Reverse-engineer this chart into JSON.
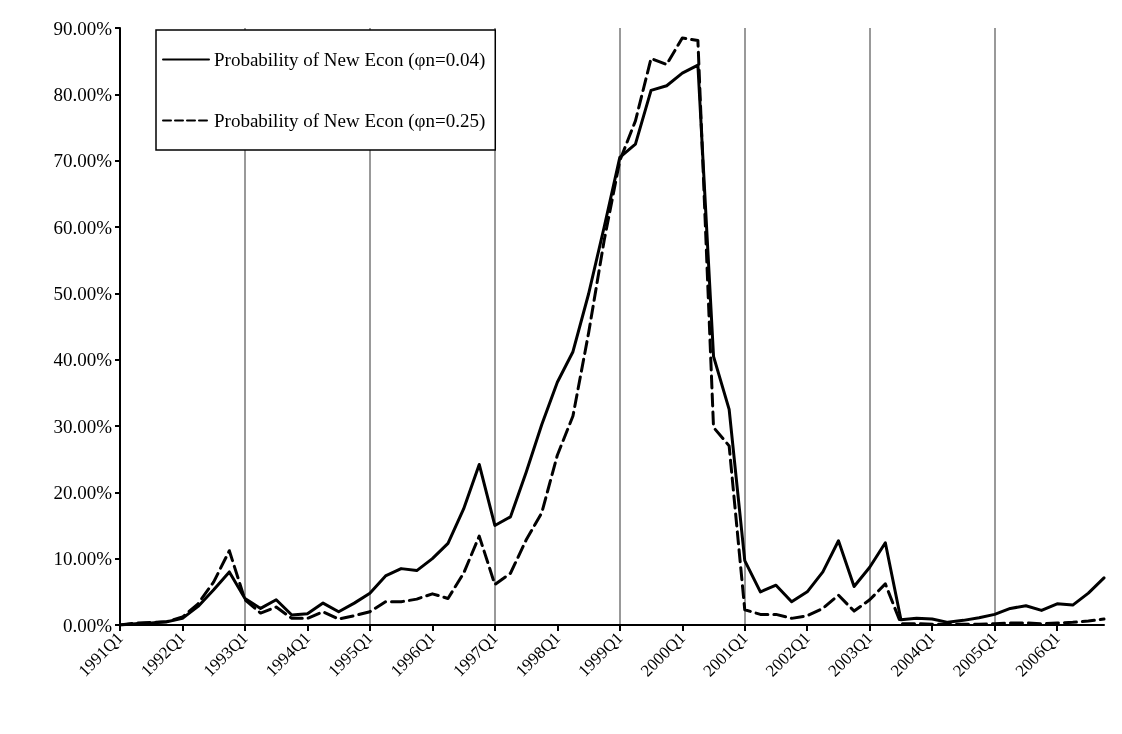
{
  "chart_data": {
    "type": "line",
    "categories": [
      "1991Q1",
      null,
      null,
      null,
      "1992Q1",
      null,
      null,
      null,
      "1993Q1",
      null,
      null,
      null,
      "1994Q1",
      null,
      null,
      null,
      "1995Q1",
      null,
      null,
      null,
      "1996Q1",
      null,
      null,
      null,
      "1997Q1",
      null,
      null,
      null,
      "1998Q1",
      null,
      null,
      null,
      "1999Q1",
      null,
      null,
      null,
      "2000Q1",
      null,
      null,
      null,
      "2001Q1",
      null,
      null,
      null,
      "2002Q1",
      null,
      null,
      null,
      "2003Q1",
      null,
      null,
      null,
      "2004Q1",
      null,
      null,
      null,
      "2005Q1",
      null,
      null,
      null,
      "2006Q1",
      null,
      null,
      null
    ],
    "series": [
      {
        "name": "Probability of New Econ (φn=0.04)",
        "color": "#000000",
        "line_style": "solid",
        "values": [
          0,
          0.2,
          0.3,
          0.5,
          1.0,
          2.8,
          5.3,
          8.0,
          4.0,
          2.5,
          3.8,
          1.5,
          1.7,
          3.3,
          2.0,
          3.3,
          4.8,
          7.4,
          8.5,
          8.2,
          10,
          12.3,
          17.5,
          24.2,
          15,
          16.3,
          23,
          30.2,
          36.6,
          41.2,
          49.9,
          60,
          70.5,
          72.5,
          80.6,
          81.3,
          83.2,
          84.4,
          40.5,
          32.5,
          9.7,
          5.0,
          6.0,
          3.5,
          5.0,
          8.0,
          12.7,
          5.8,
          8.7,
          12.4,
          0.8,
          1.0,
          0.9,
          0.4,
          0.7,
          1.1,
          1.6,
          2.5,
          2.9,
          2.2,
          3.2,
          3.0,
          4.8,
          7.1
        ]
      },
      {
        "name": "Probability of New Econ (φn=0.25)",
        "color": "#000000",
        "line_style": "dashed",
        "values": [
          0,
          0.3,
          0.4,
          0.5,
          1.2,
          3.2,
          6.5,
          11.2,
          3.8,
          1.8,
          2.7,
          1.0,
          1.0,
          2.0,
          0.9,
          1.4,
          2.0,
          3.5,
          3.5,
          3.9,
          4.7,
          4.0,
          7.8,
          13.4,
          6.1,
          7.8,
          12.8,
          16.9,
          25.6,
          31.5,
          44,
          58,
          70,
          76,
          85.4,
          84.5,
          88.5,
          88.1,
          29.8,
          27,
          2.3,
          1.6,
          1.6,
          1.0,
          1.4,
          2.5,
          4.5,
          2.1,
          3.8,
          6.2,
          0.2,
          0.2,
          0.1,
          0.1,
          0.1,
          0.1,
          0.2,
          0.3,
          0.3,
          0.2,
          0.3,
          0.4,
          0.6,
          0.9
        ]
      }
    ],
    "ylim": [
      0,
      90
    ],
    "yticks": [
      {
        "value": 0,
        "label": "0.00%"
      },
      {
        "value": 10,
        "label": "10.00%"
      },
      {
        "value": 20,
        "label": "20.00%"
      },
      {
        "value": 30,
        "label": "30.00%"
      },
      {
        "value": 40,
        "label": "40.00%"
      },
      {
        "value": 50,
        "label": "50.00%"
      },
      {
        "value": 60,
        "label": "60.00%"
      },
      {
        "value": 70,
        "label": "70.00%"
      },
      {
        "value": 80,
        "label": "80.00%"
      },
      {
        "value": 90,
        "label": "90.00%"
      }
    ],
    "grid": "x",
    "legend": "top left",
    "marker": "none"
  }
}
